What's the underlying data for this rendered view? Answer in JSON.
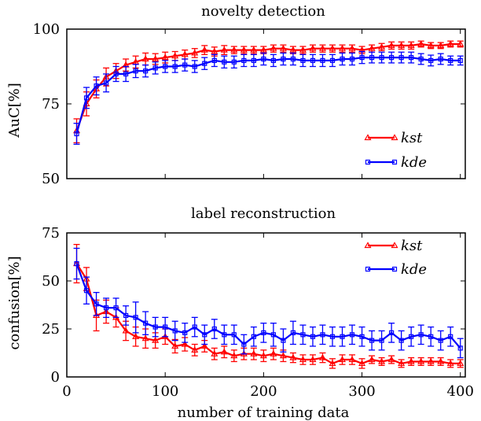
{
  "chart_data": [
    {
      "type": "line",
      "title": "novelty detection",
      "xlabel": "",
      "ylabel": "AuC[%]",
      "xlim": [
        0,
        405
      ],
      "ylim": [
        50,
        100
      ],
      "xticks": [
        0,
        100,
        200,
        300,
        400
      ],
      "yticks": [
        50,
        75,
        100
      ],
      "legend_position": "lower-right",
      "x": [
        10,
        20,
        30,
        40,
        50,
        60,
        70,
        80,
        90,
        100,
        110,
        120,
        130,
        140,
        150,
        160,
        170,
        180,
        190,
        200,
        210,
        220,
        230,
        240,
        250,
        260,
        270,
        280,
        290,
        300,
        310,
        320,
        330,
        340,
        350,
        360,
        370,
        380,
        390,
        400
      ],
      "series": [
        {
          "name": "kst",
          "color": "#ff0000",
          "marker": "triangle",
          "values": [
            66,
            75,
            80,
            84,
            86,
            88,
            89,
            90,
            90,
            90.5,
            91,
            91.5,
            92,
            93,
            92.5,
            93,
            93,
            93,
            93,
            93,
            93.5,
            93.5,
            93,
            93,
            93.5,
            93.5,
            93.5,
            93.5,
            93.5,
            93,
            93.5,
            94,
            94.5,
            94.5,
            94.5,
            95,
            94.5,
            94.5,
            95,
            95
          ],
          "errors": [
            4,
            4,
            3,
            3,
            2.5,
            2,
            2,
            2,
            1.8,
            1.8,
            1.5,
            1.5,
            1.5,
            1.5,
            1.5,
            1.5,
            1.2,
            1.2,
            1.2,
            1.2,
            1.2,
            1.2,
            1.2,
            1.2,
            1.2,
            1.2,
            1.2,
            1.2,
            1.2,
            1.2,
            1.2,
            1.2,
            1.2,
            1.2,
            1.2,
            1,
            1,
            1,
            1,
            1
          ]
        },
        {
          "name": "kde",
          "color": "#0000ff",
          "marker": "square",
          "values": [
            65,
            77,
            81,
            82,
            85,
            85,
            86,
            86,
            87,
            87.5,
            87.5,
            88,
            87.5,
            88.5,
            89.5,
            89,
            89,
            89.5,
            89.5,
            90,
            89.5,
            90,
            90,
            89.5,
            89.5,
            89.5,
            89.5,
            90,
            90,
            90.5,
            90.5,
            90.5,
            90.5,
            90.5,
            90.5,
            90,
            89.5,
            90,
            89.5,
            89.5
          ],
          "errors": [
            3.5,
            3.5,
            3,
            3,
            2.5,
            2.5,
            2.2,
            2,
            2,
            2,
            2,
            2,
            2,
            2,
            2,
            2,
            2,
            2,
            2,
            2,
            2,
            2,
            2,
            2,
            2,
            2,
            2,
            2,
            2,
            2,
            1.8,
            1.8,
            1.8,
            1.8,
            1.8,
            1.8,
            1.8,
            1.8,
            1.5,
            1.5
          ]
        }
      ]
    },
    {
      "type": "line",
      "title": "label reconstruction",
      "xlabel": "number of training data",
      "ylabel": "confusion[%]",
      "xlim": [
        0,
        405
      ],
      "ylim": [
        0,
        75
      ],
      "xticks": [
        0,
        100,
        200,
        300,
        400
      ],
      "yticks": [
        0,
        25,
        50,
        75
      ],
      "legend_position": "top-right",
      "x": [
        10,
        20,
        30,
        40,
        50,
        60,
        70,
        80,
        90,
        100,
        110,
        120,
        130,
        140,
        150,
        160,
        170,
        180,
        190,
        200,
        210,
        220,
        230,
        240,
        250,
        260,
        270,
        280,
        290,
        300,
        310,
        320,
        330,
        340,
        350,
        360,
        370,
        380,
        390,
        400
      ],
      "series": [
        {
          "name": "kst",
          "color": "#ff0000",
          "marker": "triangle",
          "values": [
            59,
            51,
            32,
            34,
            31,
            24,
            21,
            20,
            19,
            21,
            16,
            17,
            14,
            16,
            12,
            13,
            11,
            12,
            12,
            11,
            12,
            11,
            10,
            9,
            9,
            10,
            7,
            9,
            9,
            7,
            9,
            8,
            9,
            7,
            8,
            8,
            8,
            8,
            7,
            7
          ],
          "errors": [
            10,
            6,
            8,
            6,
            5,
            5,
            5,
            5,
            4,
            4,
            3.5,
            3.5,
            3,
            3,
            3,
            3,
            3,
            3,
            3,
            3,
            3,
            3,
            2.5,
            2.5,
            2.5,
            2.5,
            2.5,
            2.5,
            2.5,
            2.5,
            2,
            2,
            2,
            2,
            2,
            2,
            2,
            2,
            2,
            2
          ]
        },
        {
          "name": "kde",
          "color": "#0000ff",
          "marker": "square",
          "values": [
            59,
            45,
            38,
            36,
            36,
            32,
            31,
            28,
            26,
            26,
            24,
            23,
            26,
            22,
            25,
            22,
            22,
            17,
            21,
            23,
            22,
            19,
            23,
            22,
            21,
            22,
            21,
            21,
            22,
            21,
            19,
            19,
            23,
            19,
            21,
            22,
            21,
            19,
            21,
            15
          ],
          "errors": [
            8,
            7,
            6,
            5,
            5,
            5,
            8,
            6,
            5,
            5,
            5,
            5,
            5,
            5,
            5,
            5,
            5,
            5,
            5,
            5,
            6,
            6,
            6,
            5,
            5,
            5,
            5,
            5,
            5,
            5,
            5,
            5,
            5,
            5,
            5,
            5,
            5,
            5,
            5,
            5
          ]
        }
      ]
    }
  ]
}
